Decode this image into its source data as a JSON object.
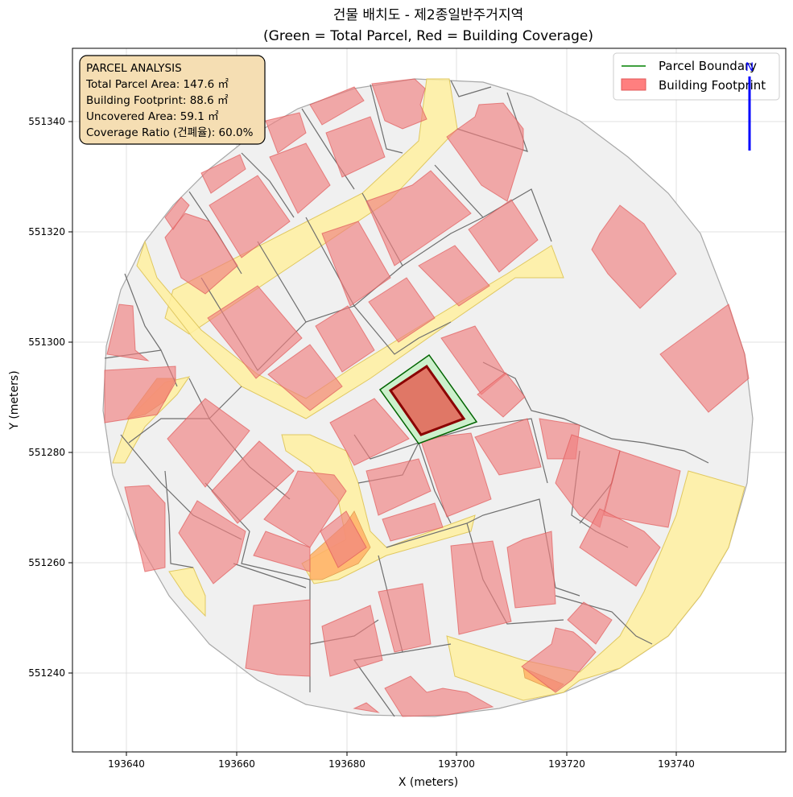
{
  "title": {
    "line1": "건물 배치도 - 제2종일반주거지역",
    "line2": "(Green = Total Parcel, Red = Building Coverage)"
  },
  "axes": {
    "xlabel": "X (meters)",
    "ylabel": "Y (meters)",
    "xticks": [
      "193640",
      "193660",
      "193680",
      "193700",
      "193720",
      "193740"
    ],
    "yticks": [
      "551340",
      "551320",
      "551300",
      "551280",
      "551260",
      "551240"
    ]
  },
  "info_box": {
    "heading": "PARCEL ANALYSIS",
    "parcel_area": "Total Parcel Area: 147.6 ㎡",
    "footprint": "Building Footprint: 88.6 ㎡",
    "uncovered": "Uncovered Area: 59.1 ㎡",
    "coverage": "Coverage Ratio (건폐율): 60.0%",
    "background_color": "#f5deb3"
  },
  "legend": {
    "parcel_label": "Parcel Boundary",
    "building_label": "Building Footprint",
    "parcel_color": "#008000",
    "building_color": "#ff7f7f"
  },
  "north_arrow": {
    "label": "N",
    "color": "#0000ff"
  },
  "colors": {
    "parcel_fill": "#c8f0c8",
    "parcel_edge": "#006400",
    "target_building_fill": "#e07060",
    "target_building_edge": "#8b0000",
    "road_fill": "#fff0a0",
    "context_building_fill": "#f08080",
    "background_area": "#f0f0f0"
  }
}
